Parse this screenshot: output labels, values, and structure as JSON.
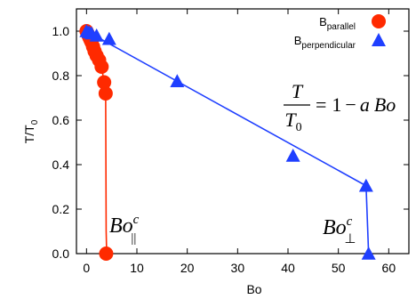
{
  "chart_data": {
    "type": "scatter",
    "xlabel": "Bo",
    "ylabel": "T/T₀",
    "ylabel_main": "T/T",
    "ylabel_sub": "0",
    "xlim": [
      -2,
      64
    ],
    "ylim": [
      0,
      1.1
    ],
    "xticks": [
      "0",
      "10",
      "20",
      "30",
      "40",
      "50",
      "60"
    ],
    "yticks": [
      "0.0",
      "0.2",
      "0.4",
      "0.6",
      "0.8",
      "1.0"
    ],
    "legend_position": "top-right",
    "series": [
      {
        "name": "B_parallel",
        "name_main": "B",
        "name_sub": "parallel",
        "marker": "circle",
        "color": "#ff2a00",
        "x": [
          0,
          0.2,
          0.4,
          0.6,
          0.8,
          1.0,
          1.3,
          1.6,
          2.0,
          2.5,
          3.0,
          3.5,
          3.8,
          3.9
        ],
        "y": [
          1.0,
          0.99,
          0.98,
          0.97,
          0.96,
          0.95,
          0.93,
          0.91,
          0.89,
          0.87,
          0.84,
          0.77,
          0.72,
          0.0
        ]
      },
      {
        "name": "B_perpendicular",
        "name_main": "B",
        "name_sub": "perpendicular",
        "marker": "triangle",
        "color": "#1f3fff",
        "x": [
          0,
          0.5,
          1.0,
          2.0,
          4.5,
          18,
          41,
          55.5,
          56
        ],
        "y": [
          1.0,
          0.995,
          0.99,
          0.98,
          0.965,
          0.775,
          0.44,
          0.305,
          0.0
        ]
      }
    ],
    "fit_lines": [
      {
        "color": "#ff2a00",
        "x": [
          0,
          1.0,
          2.0,
          3.0,
          3.8,
          3.9,
          4.0
        ],
        "y": [
          1.0,
          0.95,
          0.89,
          0.84,
          0.72,
          0.1,
          0.0
        ]
      },
      {
        "color": "#1f3fff",
        "x": [
          0,
          55.5,
          56
        ],
        "y": [
          1.0,
          0.305,
          0.0
        ]
      }
    ],
    "annotations": {
      "equation": {
        "frac_num": "T",
        "frac_den_main": "T",
        "frac_den_sub": "0",
        "rhs_eq": "=",
        "rhs_one": "1",
        "rhs_minus": "−",
        "rhs_a": "a",
        "rhs_bo": "Bo"
      },
      "bo_parallel": {
        "main": "Bo",
        "sup": "c",
        "sub": "||"
      },
      "bo_perp": {
        "main": "Bo",
        "sup": "c",
        "sub": "⊥"
      }
    }
  }
}
